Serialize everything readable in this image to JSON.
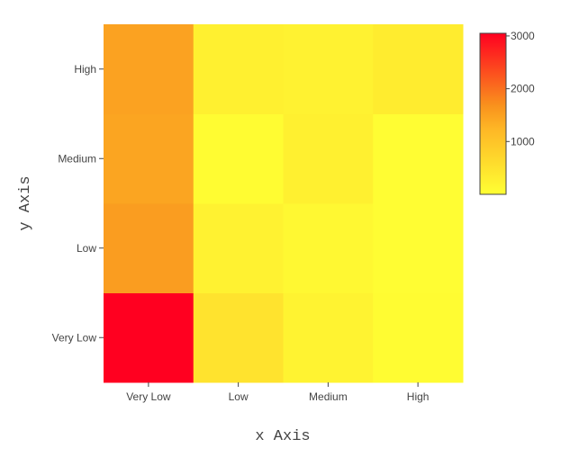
{
  "chart_data": {
    "type": "heatmap",
    "xlabel": "x Axis",
    "ylabel": "y Axis",
    "x_categories": [
      "Very Low",
      "Low",
      "Medium",
      "High"
    ],
    "y_categories": [
      "Very Low",
      "Low",
      "Medium",
      "High"
    ],
    "z": [
      [
        3050,
        480,
        200,
        50
      ],
      [
        1550,
        220,
        120,
        40
      ],
      [
        1450,
        60,
        250,
        30
      ],
      [
        1480,
        250,
        220,
        330
      ]
    ],
    "zmin": 0,
    "zmax": 3050,
    "colorscale": [
      [
        0,
        "#ffff33"
      ],
      [
        0.4,
        "#feb826"
      ],
      [
        0.55,
        "#f9921d"
      ],
      [
        1,
        "#ff0020"
      ]
    ],
    "colorbar": {
      "ticks": [
        1000,
        2000,
        3000
      ],
      "tick_labels": [
        "1000",
        "2000",
        "3000"
      ]
    },
    "grid": false
  }
}
